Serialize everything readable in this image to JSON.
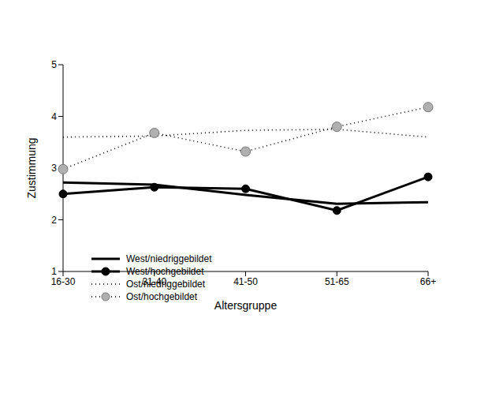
{
  "chart_data": {
    "type": "line",
    "x_label": "Altersgruppe",
    "y_label": "Zustimmung",
    "categories": [
      "16-30",
      "31-40",
      "41-50",
      "51-65",
      "66+"
    ],
    "ylim": [
      1,
      5
    ],
    "yticks": [
      1,
      2,
      3,
      4,
      5
    ],
    "grid": false,
    "legend": "lower left",
    "series": [
      {
        "name": "West/niedriggebildet",
        "color": "#000000",
        "marker": "none",
        "line_style": "solid",
        "values": [
          2.72,
          2.68,
          2.48,
          2.31,
          2.34
        ]
      },
      {
        "name": "West/hochgebildet",
        "color": "#000000",
        "marker": "circle",
        "line_style": "solid",
        "values": [
          2.5,
          2.63,
          2.6,
          2.18,
          2.83
        ]
      },
      {
        "name": "Ost/niedriggebildet",
        "color": "#000000",
        "marker": "none",
        "line_style": "dotted",
        "values": [
          3.6,
          3.62,
          3.73,
          3.75,
          3.6
        ]
      },
      {
        "name": "Ost/hochgebildet",
        "color": "#b0b0b0",
        "marker": "circle",
        "line_style": "dotted",
        "values": [
          2.98,
          3.68,
          3.32,
          3.8,
          4.18
        ]
      }
    ]
  }
}
